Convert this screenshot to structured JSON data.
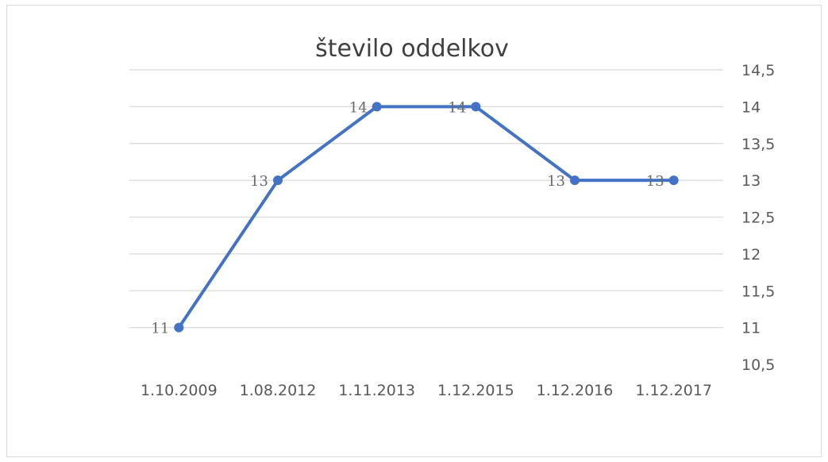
{
  "chart_data": {
    "type": "line",
    "title": "število oddelkov",
    "xlabel": "",
    "ylabel": "",
    "categories": [
      "1.10.2009",
      "1.08.2012",
      "1.11.2013",
      "1.12.2015",
      "1.12.2016",
      "1.12.2017"
    ],
    "series": [
      {
        "values": [
          11,
          13,
          14,
          14,
          13,
          13
        ]
      }
    ],
    "data_labels": [
      "11",
      "13",
      "14",
      "14",
      "13",
      "13"
    ],
    "ylim": [
      10.5,
      14.5
    ],
    "y_ticks": [
      {
        "value": 10.5,
        "label": "10,5"
      },
      {
        "value": 11,
        "label": "11"
      },
      {
        "value": 11.5,
        "label": "11,5"
      },
      {
        "value": 12,
        "label": "12"
      },
      {
        "value": 12.5,
        "label": "12,5"
      },
      {
        "value": 13,
        "label": "13"
      },
      {
        "value": 13.5,
        "label": "13,5"
      },
      {
        "value": 14,
        "label": "14"
      },
      {
        "value": 14.5,
        "label": "14,5"
      }
    ],
    "y_axis_position": "right",
    "grid": true,
    "legend": "none",
    "colors": {
      "line": "#4472c4",
      "marker": "#4472c4",
      "grid": "#d9d9d9",
      "text": "#595959",
      "title": "#404040"
    }
  }
}
